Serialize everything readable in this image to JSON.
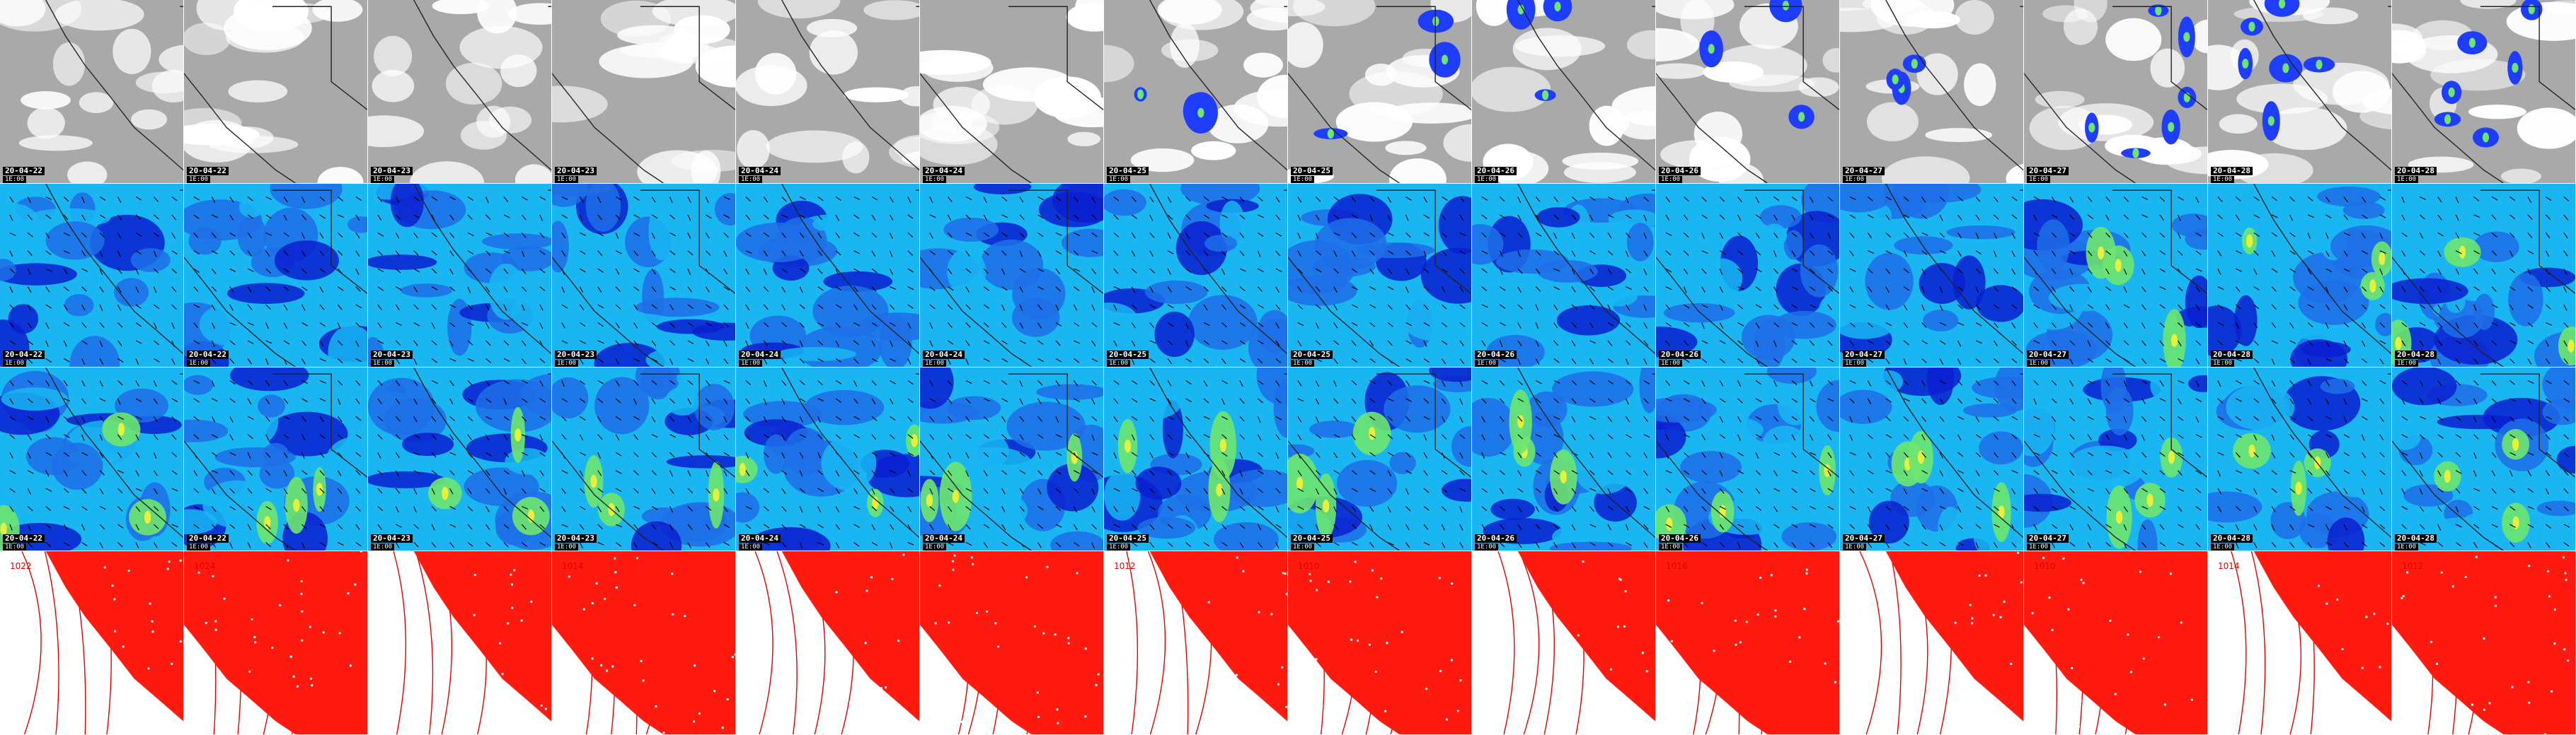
{
  "rows": [
    {
      "id": "clouds",
      "kind": "clouds"
    },
    {
      "id": "wind-a",
      "kind": "wind"
    },
    {
      "id": "wind-b",
      "kind": "wind"
    },
    {
      "id": "pressure",
      "kind": "pressure"
    }
  ],
  "frames": [
    {
      "date": "20-04-22",
      "hour": "1E:00"
    },
    {
      "date": "20-04-22",
      "hour": "1E:00"
    },
    {
      "date": "20-04-23",
      "hour": "1E:00"
    },
    {
      "date": "20-04-23",
      "hour": "1E:00"
    },
    {
      "date": "20-04-24",
      "hour": "1E:00"
    },
    {
      "date": "20-04-24",
      "hour": "1E:00"
    },
    {
      "date": "20-04-25",
      "hour": "1E:00"
    },
    {
      "date": "20-04-25",
      "hour": "1E:00"
    },
    {
      "date": "20-04-26",
      "hour": "1E:00"
    },
    {
      "date": "20-04-26",
      "hour": "1E:00"
    },
    {
      "date": "20-04-27",
      "hour": "1E:00"
    },
    {
      "date": "20-04-27",
      "hour": "1E:00"
    },
    {
      "date": "20-04-28",
      "hour": "1E:00"
    },
    {
      "date": "20-04-28",
      "hour": "1E:00"
    }
  ],
  "isobar_labels": [
    "1022",
    "1024",
    "",
    "1014",
    "",
    "",
    "1012",
    "1010",
    "",
    "1016",
    "",
    "1010",
    "1014",
    "1012"
  ],
  "colors": {
    "cloud_bg": "#a9a9a9",
    "cloud_white": "#ffffff",
    "precip_blue": "#1f3dff",
    "wind_light": "#19b6f2",
    "wind_mid": "#1f6fe8",
    "wind_dark": "#0a1fd0",
    "wind_green": "#6ee66e",
    "wind_yellow": "#e8f03a",
    "land_red": "#ff1a0f",
    "isobar": "#e00000",
    "border": "#222222"
  }
}
